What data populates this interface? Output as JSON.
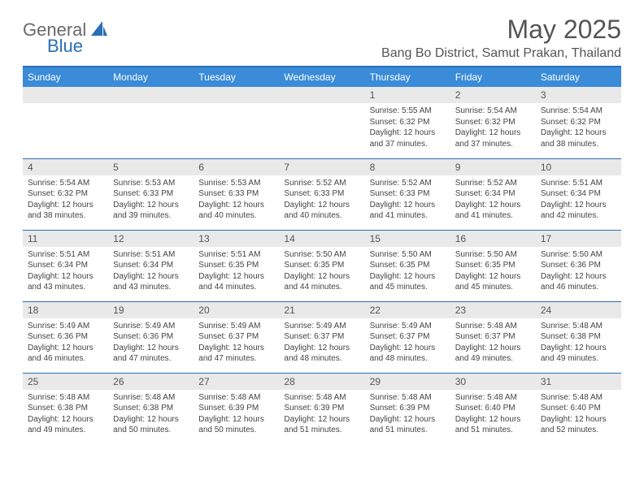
{
  "logo": {
    "text1": "General",
    "text2": "Blue",
    "accent_color": "#2a6fb5"
  },
  "title": "May 2025",
  "location": "Bang Bo District, Samut Prakan, Thailand",
  "colors": {
    "header_bg": "#3a8bd8",
    "header_text": "#ffffff",
    "rule": "#2a6fb5",
    "daynum_bg": "#e9e9e9",
    "text": "#444444"
  },
  "day_headers": [
    "Sunday",
    "Monday",
    "Tuesday",
    "Wednesday",
    "Thursday",
    "Friday",
    "Saturday"
  ],
  "layout": {
    "cols": 7,
    "rows": 5,
    "first_weekday_index": 4
  },
  "days": [
    {
      "n": 1,
      "sunrise": "5:55 AM",
      "sunset": "6:32 PM",
      "daylight": "12 hours and 37 minutes."
    },
    {
      "n": 2,
      "sunrise": "5:54 AM",
      "sunset": "6:32 PM",
      "daylight": "12 hours and 37 minutes."
    },
    {
      "n": 3,
      "sunrise": "5:54 AM",
      "sunset": "6:32 PM",
      "daylight": "12 hours and 38 minutes."
    },
    {
      "n": 4,
      "sunrise": "5:54 AM",
      "sunset": "6:32 PM",
      "daylight": "12 hours and 38 minutes."
    },
    {
      "n": 5,
      "sunrise": "5:53 AM",
      "sunset": "6:33 PM",
      "daylight": "12 hours and 39 minutes."
    },
    {
      "n": 6,
      "sunrise": "5:53 AM",
      "sunset": "6:33 PM",
      "daylight": "12 hours and 40 minutes."
    },
    {
      "n": 7,
      "sunrise": "5:52 AM",
      "sunset": "6:33 PM",
      "daylight": "12 hours and 40 minutes."
    },
    {
      "n": 8,
      "sunrise": "5:52 AM",
      "sunset": "6:33 PM",
      "daylight": "12 hours and 41 minutes."
    },
    {
      "n": 9,
      "sunrise": "5:52 AM",
      "sunset": "6:34 PM",
      "daylight": "12 hours and 41 minutes."
    },
    {
      "n": 10,
      "sunrise": "5:51 AM",
      "sunset": "6:34 PM",
      "daylight": "12 hours and 42 minutes."
    },
    {
      "n": 11,
      "sunrise": "5:51 AM",
      "sunset": "6:34 PM",
      "daylight": "12 hours and 43 minutes."
    },
    {
      "n": 12,
      "sunrise": "5:51 AM",
      "sunset": "6:34 PM",
      "daylight": "12 hours and 43 minutes."
    },
    {
      "n": 13,
      "sunrise": "5:51 AM",
      "sunset": "6:35 PM",
      "daylight": "12 hours and 44 minutes."
    },
    {
      "n": 14,
      "sunrise": "5:50 AM",
      "sunset": "6:35 PM",
      "daylight": "12 hours and 44 minutes."
    },
    {
      "n": 15,
      "sunrise": "5:50 AM",
      "sunset": "6:35 PM",
      "daylight": "12 hours and 45 minutes."
    },
    {
      "n": 16,
      "sunrise": "5:50 AM",
      "sunset": "6:35 PM",
      "daylight": "12 hours and 45 minutes."
    },
    {
      "n": 17,
      "sunrise": "5:50 AM",
      "sunset": "6:36 PM",
      "daylight": "12 hours and 46 minutes."
    },
    {
      "n": 18,
      "sunrise": "5:49 AM",
      "sunset": "6:36 PM",
      "daylight": "12 hours and 46 minutes."
    },
    {
      "n": 19,
      "sunrise": "5:49 AM",
      "sunset": "6:36 PM",
      "daylight": "12 hours and 47 minutes."
    },
    {
      "n": 20,
      "sunrise": "5:49 AM",
      "sunset": "6:37 PM",
      "daylight": "12 hours and 47 minutes."
    },
    {
      "n": 21,
      "sunrise": "5:49 AM",
      "sunset": "6:37 PM",
      "daylight": "12 hours and 48 minutes."
    },
    {
      "n": 22,
      "sunrise": "5:49 AM",
      "sunset": "6:37 PM",
      "daylight": "12 hours and 48 minutes."
    },
    {
      "n": 23,
      "sunrise": "5:48 AM",
      "sunset": "6:37 PM",
      "daylight": "12 hours and 49 minutes."
    },
    {
      "n": 24,
      "sunrise": "5:48 AM",
      "sunset": "6:38 PM",
      "daylight": "12 hours and 49 minutes."
    },
    {
      "n": 25,
      "sunrise": "5:48 AM",
      "sunset": "6:38 PM",
      "daylight": "12 hours and 49 minutes."
    },
    {
      "n": 26,
      "sunrise": "5:48 AM",
      "sunset": "6:38 PM",
      "daylight": "12 hours and 50 minutes."
    },
    {
      "n": 27,
      "sunrise": "5:48 AM",
      "sunset": "6:39 PM",
      "daylight": "12 hours and 50 minutes."
    },
    {
      "n": 28,
      "sunrise": "5:48 AM",
      "sunset": "6:39 PM",
      "daylight": "12 hours and 51 minutes."
    },
    {
      "n": 29,
      "sunrise": "5:48 AM",
      "sunset": "6:39 PM",
      "daylight": "12 hours and 51 minutes."
    },
    {
      "n": 30,
      "sunrise": "5:48 AM",
      "sunset": "6:40 PM",
      "daylight": "12 hours and 51 minutes."
    },
    {
      "n": 31,
      "sunrise": "5:48 AM",
      "sunset": "6:40 PM",
      "daylight": "12 hours and 52 minutes."
    }
  ],
  "labels": {
    "sunrise": "Sunrise:",
    "sunset": "Sunset:",
    "daylight": "Daylight:"
  }
}
